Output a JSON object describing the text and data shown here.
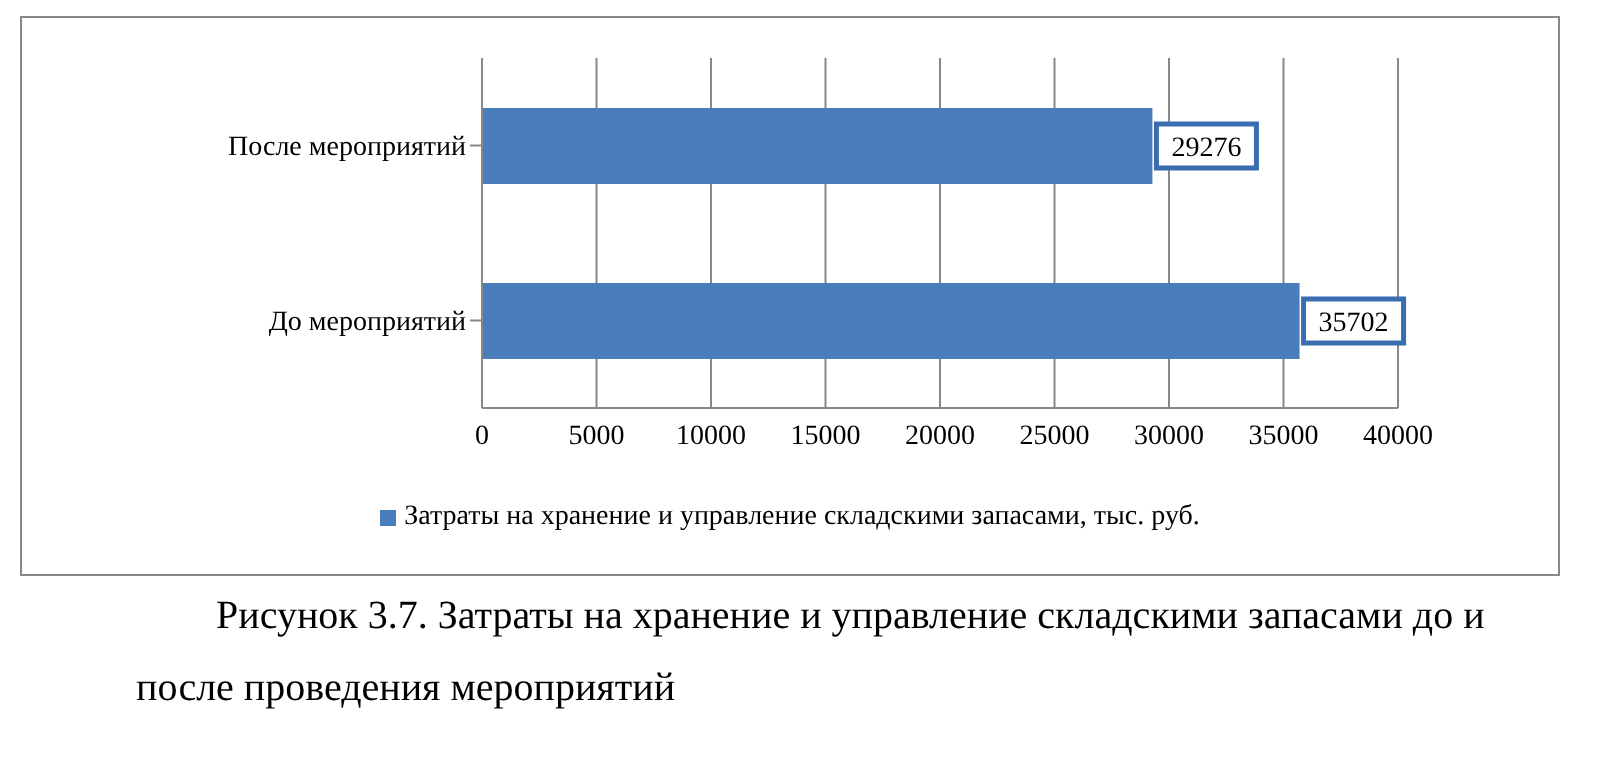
{
  "chart_data": {
    "type": "bar",
    "orientation": "horizontal",
    "categories": [
      "После мероприятий",
      "До мероприятий"
    ],
    "series": [
      {
        "name": "Затраты на хранение и управление складскими запасами, тыс. руб.",
        "color": "#4a7ebb",
        "values": [
          29276,
          35702
        ]
      }
    ],
    "xlim": [
      0,
      40000
    ],
    "xticks": [
      0,
      5000,
      10000,
      15000,
      20000,
      25000,
      30000,
      35000,
      40000
    ],
    "grid": "x",
    "legend": "bottom",
    "data_labels": true,
    "annotations": [
      "Рисунок 3.7. Затраты на хранение и управление складскими запасами до и после проведения мероприятий"
    ]
  }
}
